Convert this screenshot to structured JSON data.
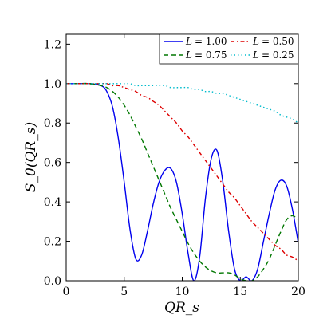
{
  "chart_data": {
    "type": "line",
    "xlabel": "QR_s",
    "ylabel": "S_0(QR_s)",
    "xlim": [
      0,
      20
    ],
    "ylim": [
      0,
      1.25
    ],
    "xticks": [
      0,
      5,
      10,
      15,
      20
    ],
    "yticks": [
      0.0,
      0.2,
      0.4,
      0.6,
      0.8,
      1.0,
      1.2
    ],
    "xtick_labels": [
      "0",
      "5",
      "10",
      "15",
      "20"
    ],
    "ytick_labels": [
      "0.0",
      "0.2",
      "0.4",
      "0.6",
      "0.8",
      "1.0",
      "1.2"
    ],
    "grid": false,
    "legend_position": "top-right",
    "x": [
      0,
      1,
      2,
      3,
      3.5,
      4,
      4.5,
      5,
      5.5,
      6,
      6.5,
      7,
      7.5,
      8,
      8.5,
      9,
      9.5,
      10,
      10.5,
      11,
      11.5,
      12,
      12.5,
      13,
      13.5,
      14,
      14.5,
      15,
      15.5,
      16,
      16.5,
      17,
      17.5,
      18,
      18.5,
      19,
      19.5,
      20
    ],
    "series": [
      {
        "name": "L = 1.00",
        "label_prefix": "L",
        "label_value": "= 1.00",
        "color": "#0000ee",
        "dash": "solid",
        "values": [
          1.0,
          1.0,
          1.0,
          0.99,
          0.96,
          0.88,
          0.72,
          0.5,
          0.26,
          0.11,
          0.13,
          0.25,
          0.39,
          0.5,
          0.56,
          0.57,
          0.5,
          0.34,
          0.14,
          0.0,
          0.12,
          0.42,
          0.62,
          0.66,
          0.5,
          0.25,
          0.06,
          0.0,
          0.02,
          0.0,
          0.06,
          0.2,
          0.34,
          0.46,
          0.51,
          0.48,
          0.36,
          0.19
        ]
      },
      {
        "name": "L = 0.75",
        "label_prefix": "L",
        "label_value": "= 0.75",
        "color": "#007700",
        "dash": "6,4",
        "values": [
          1.0,
          1.0,
          1.0,
          0.99,
          0.98,
          0.96,
          0.93,
          0.89,
          0.84,
          0.78,
          0.72,
          0.65,
          0.58,
          0.51,
          0.44,
          0.37,
          0.31,
          0.25,
          0.19,
          0.14,
          0.1,
          0.07,
          0.05,
          0.04,
          0.04,
          0.04,
          0.03,
          0.01,
          0.0,
          0.0,
          0.02,
          0.06,
          0.11,
          0.18,
          0.25,
          0.31,
          0.33,
          0.31
        ]
      },
      {
        "name": "L = 0.50",
        "label_prefix": "L",
        "label_value": "= 0.50",
        "color": "#dd0000",
        "dash": "5,3,1.5,3",
        "values": [
          1.0,
          1.0,
          1.0,
          1.0,
          1.0,
          0.99,
          0.99,
          0.98,
          0.97,
          0.96,
          0.94,
          0.93,
          0.91,
          0.89,
          0.86,
          0.83,
          0.8,
          0.76,
          0.73,
          0.69,
          0.65,
          0.61,
          0.57,
          0.53,
          0.49,
          0.45,
          0.42,
          0.38,
          0.34,
          0.3,
          0.27,
          0.24,
          0.21,
          0.18,
          0.16,
          0.13,
          0.12,
          0.1
        ]
      },
      {
        "name": "L = 0.25",
        "label_prefix": "L",
        "label_value": "= 0.25",
        "color": "#00bbcc",
        "dash": "1.5,3",
        "values": [
          1.0,
          1.0,
          1.0,
          1.0,
          1.0,
          1.0,
          1.0,
          1.0,
          1.0,
          0.99,
          0.99,
          0.99,
          0.99,
          0.99,
          0.99,
          0.98,
          0.98,
          0.98,
          0.98,
          0.97,
          0.97,
          0.96,
          0.96,
          0.95,
          0.95,
          0.94,
          0.93,
          0.92,
          0.91,
          0.9,
          0.89,
          0.88,
          0.87,
          0.86,
          0.84,
          0.83,
          0.82,
          0.8
        ]
      }
    ]
  }
}
